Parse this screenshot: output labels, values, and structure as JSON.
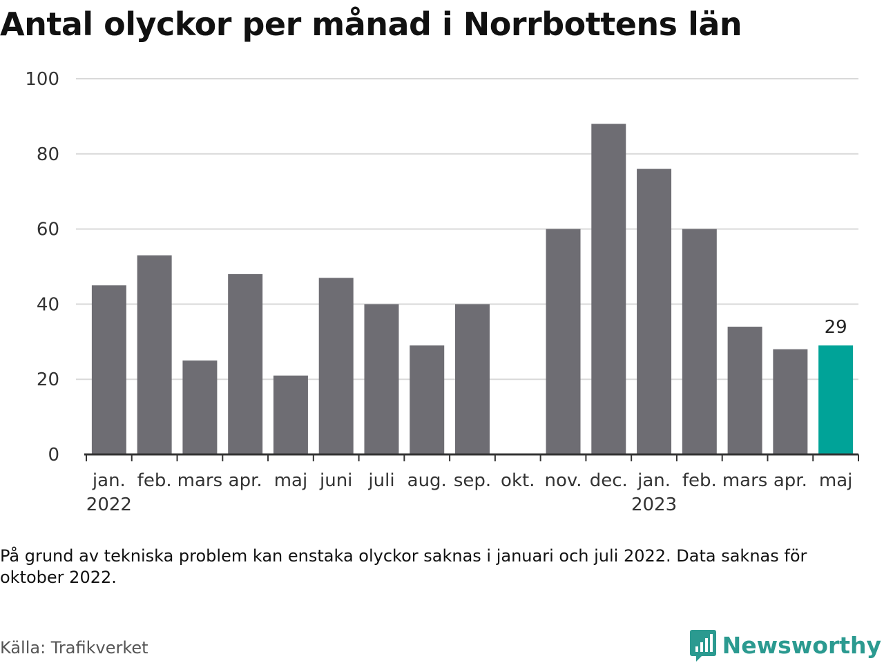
{
  "title": "Antal olyckor per månad i Norrbottens län",
  "note": "På grund av tekniska problem kan enstaka olyckor saknas i januari och juli 2022. Data saknas för oktober 2022.",
  "source": "Källa: Trafikverket",
  "brand": {
    "name": "Newsworthy",
    "icon": "bar-chart-logo-icon"
  },
  "colors": {
    "bar": "#6e6d73",
    "highlight": "#00a398",
    "grid": "#d9d9d9",
    "axis": "#333333",
    "brand": "#2b9a90"
  },
  "chart_data": {
    "type": "bar",
    "categories": [
      "jan.",
      "feb.",
      "mars",
      "apr.",
      "maj",
      "juni",
      "juli",
      "aug.",
      "sep.",
      "okt.",
      "nov.",
      "dec.",
      "jan.",
      "feb.",
      "mars",
      "apr.",
      "maj"
    ],
    "years": [
      {
        "label": "2022",
        "index": 0
      },
      {
        "label": "2023",
        "index": 12
      }
    ],
    "values": [
      45,
      53,
      25,
      48,
      21,
      47,
      40,
      29,
      40,
      null,
      60,
      88,
      76,
      60,
      34,
      28,
      29
    ],
    "highlight_index": 16,
    "data_labels": [
      {
        "index": 16,
        "text": "29"
      }
    ],
    "yticks": [
      0,
      20,
      40,
      60,
      80,
      100
    ],
    "ylim": [
      0,
      100
    ],
    "xlabel": "",
    "ylabel": "",
    "grid": true,
    "legend": "none"
  }
}
